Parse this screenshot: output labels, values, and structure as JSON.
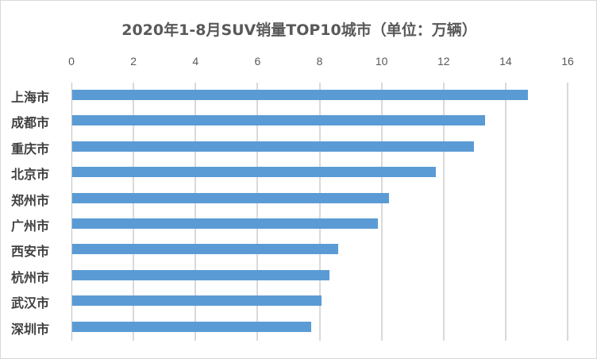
{
  "chart_data": {
    "type": "bar",
    "orientation": "horizontal",
    "title": "2020年1-8月SUV销量TOP10城市（单位：万辆）",
    "xlabel": "",
    "ylabel": "",
    "xlim": [
      0,
      16
    ],
    "xticks": [
      "0",
      "2",
      "4",
      "6",
      "8",
      "10",
      "12",
      "14",
      "16"
    ],
    "grid": true,
    "legend": null,
    "categories": [
      "上海市",
      "成都市",
      "重庆市",
      "北京市",
      "郑州市",
      "广州市",
      "西安市",
      "杭州市",
      "武汉市",
      "深圳市"
    ],
    "values": [
      14.72,
      13.34,
      12.97,
      11.74,
      10.23,
      9.87,
      8.6,
      8.31,
      8.06,
      7.72
    ],
    "bar_color": "#5b9bd5"
  }
}
